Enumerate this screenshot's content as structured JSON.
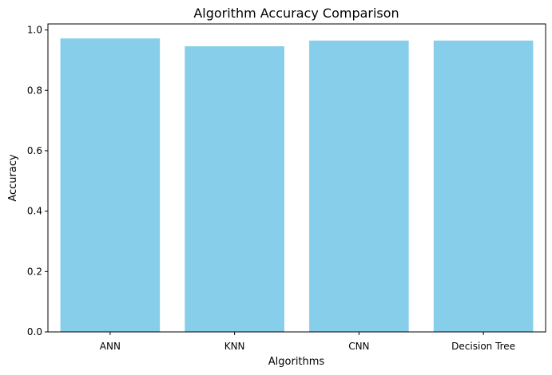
{
  "chart_data": {
    "type": "bar",
    "title": "Algorithm Accuracy Comparison",
    "xlabel": "Algorithms",
    "ylabel": "Accuracy",
    "categories": [
      "ANN",
      "KNN",
      "CNN",
      "Decision Tree"
    ],
    "values": [
      0.972,
      0.946,
      0.965,
      0.965
    ],
    "ylim": [
      0,
      1.02
    ],
    "yticks": [
      {
        "value": 0.0,
        "label": "0.0"
      },
      {
        "value": 0.2,
        "label": "0.2"
      },
      {
        "value": 0.4,
        "label": "0.4"
      },
      {
        "value": 0.6,
        "label": "0.6"
      },
      {
        "value": 0.8,
        "label": "0.8"
      },
      {
        "value": 1.0,
        "label": "1.0"
      }
    ],
    "bar_color": "#87ceeb",
    "grid": false,
    "legend": "none"
  }
}
